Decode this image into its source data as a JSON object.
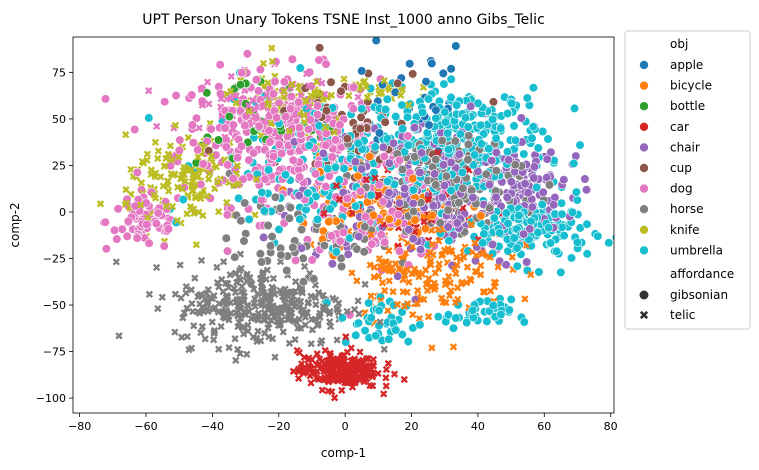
{
  "chart_data": {
    "type": "scatter",
    "title": "UPT Person Unary Tokens TSNE Inst_1000 anno Gibs_Telic",
    "xlabel": "comp-1",
    "ylabel": "comp-2",
    "xlim": [
      -82,
      81
    ],
    "ylim": [
      -108,
      94
    ],
    "xticks": [
      "−80",
      "−60",
      "−40",
      "−20",
      "0",
      "20",
      "40",
      "60",
      "80"
    ],
    "xtick_values": [
      -80,
      -60,
      -40,
      -20,
      0,
      20,
      40,
      60,
      80
    ],
    "yticks": [
      "−100",
      "−75",
      "−50",
      "−25",
      "0",
      "25",
      "50",
      "75"
    ],
    "ytick_values": [
      -100,
      -75,
      -50,
      -25,
      0,
      25,
      50,
      75
    ],
    "grid": false,
    "legend_placement": "outside-right",
    "hue_title": "obj",
    "style_title": "affordance",
    "categories": [
      {
        "name": "apple",
        "color": "#1f77b4"
      },
      {
        "name": "bicycle",
        "color": "#ff7f0e"
      },
      {
        "name": "bottle",
        "color": "#2ca02c"
      },
      {
        "name": "car",
        "color": "#d62728"
      },
      {
        "name": "chair",
        "color": "#9467bd"
      },
      {
        "name": "cup",
        "color": "#8c564b"
      },
      {
        "name": "dog",
        "color": "#e377c2"
      },
      {
        "name": "horse",
        "color": "#7f7f7f"
      },
      {
        "name": "knife",
        "color": "#bcbd22"
      },
      {
        "name": "umbrella",
        "color": "#17becf"
      }
    ],
    "styles": [
      {
        "name": "gibsonian",
        "marker": "circle"
      },
      {
        "name": "telic",
        "marker": "x"
      }
    ],
    "clusters": [
      {
        "category": "dog",
        "marker": "circle",
        "cx": -20,
        "cy": 40,
        "sx": 15,
        "sy": 18,
        "n": 320
      },
      {
        "category": "dog",
        "marker": "circle",
        "cx": -60,
        "cy": -5,
        "sx": 6,
        "sy": 8,
        "n": 70
      },
      {
        "category": "dog",
        "marker": "x",
        "cx": -25,
        "cy": 55,
        "sx": 12,
        "sy": 10,
        "n": 80
      },
      {
        "category": "dog",
        "marker": "circle",
        "cx": 10,
        "cy": 5,
        "sx": 15,
        "sy": 15,
        "n": 110
      },
      {
        "category": "chair",
        "marker": "circle",
        "cx": 25,
        "cy": 10,
        "sx": 20,
        "sy": 20,
        "n": 280
      },
      {
        "category": "chair",
        "marker": "circle",
        "cx": 55,
        "cy": 15,
        "sx": 6,
        "sy": 8,
        "n": 60
      },
      {
        "category": "umbrella",
        "marker": "circle",
        "cx": 35,
        "cy": 40,
        "sx": 13,
        "sy": 13,
        "n": 260
      },
      {
        "category": "umbrella",
        "marker": "circle",
        "cx": 55,
        "cy": -10,
        "sx": 9,
        "sy": 9,
        "n": 170
      },
      {
        "category": "umbrella",
        "marker": "circle",
        "cx": -5,
        "cy": 25,
        "sx": 18,
        "sy": 20,
        "n": 170
      },
      {
        "category": "umbrella",
        "marker": "circle",
        "cx": 40,
        "cy": -55,
        "sx": 5,
        "sy": 4,
        "n": 40
      },
      {
        "category": "umbrella",
        "marker": "circle",
        "cx": 10,
        "cy": -60,
        "sx": 6,
        "sy": 7,
        "n": 40
      },
      {
        "category": "horse",
        "marker": "x",
        "cx": -25,
        "cy": -50,
        "sx": 13,
        "sy": 11,
        "n": 320
      },
      {
        "category": "horse",
        "marker": "circle",
        "cx": 30,
        "cy": 15,
        "sx": 12,
        "sy": 14,
        "n": 160
      },
      {
        "category": "horse",
        "marker": "circle",
        "cx": -15,
        "cy": -15,
        "sx": 10,
        "sy": 10,
        "n": 60
      },
      {
        "category": "car",
        "marker": "x",
        "cx": -2,
        "cy": -85,
        "sx": 6,
        "sy": 5,
        "n": 230
      },
      {
        "category": "car",
        "marker": "x",
        "cx": 20,
        "cy": 5,
        "sx": 12,
        "sy": 12,
        "n": 60
      },
      {
        "category": "bicycle",
        "marker": "x",
        "cx": 25,
        "cy": -30,
        "sx": 12,
        "sy": 14,
        "n": 180
      },
      {
        "category": "bicycle",
        "marker": "circle",
        "cx": 10,
        "cy": 5,
        "sx": 12,
        "sy": 12,
        "n": 80
      },
      {
        "category": "knife",
        "marker": "x",
        "cx": -48,
        "cy": 15,
        "sx": 9,
        "sy": 12,
        "n": 140
      },
      {
        "category": "knife",
        "marker": "x",
        "cx": -18,
        "cy": 55,
        "sx": 10,
        "sy": 10,
        "n": 80
      },
      {
        "category": "knife",
        "marker": "x",
        "cx": 10,
        "cy": 65,
        "sx": 6,
        "sy": 5,
        "n": 30
      },
      {
        "category": "apple",
        "marker": "circle",
        "cx": 20,
        "cy": 60,
        "sx": 10,
        "sy": 15,
        "n": 30
      },
      {
        "category": "cup",
        "marker": "circle",
        "cx": 0,
        "cy": 50,
        "sx": 15,
        "sy": 15,
        "n": 60
      },
      {
        "category": "bottle",
        "marker": "circle",
        "cx": -30,
        "cy": 50,
        "sx": 10,
        "sy": 10,
        "n": 30
      }
    ]
  }
}
